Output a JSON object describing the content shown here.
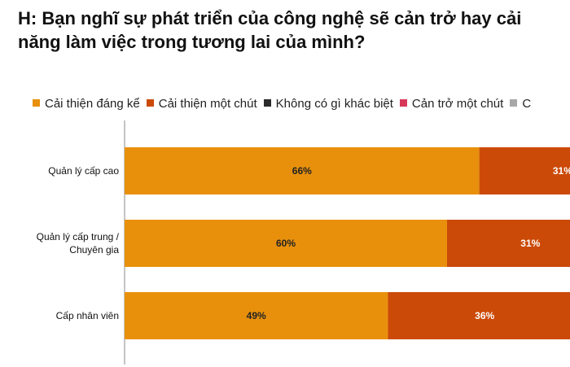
{
  "title_lines": [
    "H: Bạn nghĩ sự phát triển của công nghệ sẽ cản trở hay cải",
    "năng làm việc trong tương lai của mình?"
  ],
  "chart_data": {
    "type": "bar",
    "orientation": "horizontal",
    "stacked": true,
    "categories": [
      [
        "Quản lý cấp cao"
      ],
      [
        "Quản lý cấp trung /",
        "Chuyên gia"
      ],
      [
        "Cấp nhân viên"
      ]
    ],
    "series": [
      {
        "name": "Cải thiện đáng kể",
        "color": "#E8900C",
        "values": [
          66,
          60,
          49
        ],
        "label_color": "#222222"
      },
      {
        "name": "Cải thiện một chút",
        "color": "#CC4A07",
        "values": [
          31,
          31,
          36
        ],
        "label_color": "#ffffff"
      },
      {
        "name": "Không có gì khác biệt",
        "color": "#2b2b2b",
        "values": [
          null,
          null,
          null
        ],
        "label_color": "#ffffff"
      },
      {
        "name": "Cản trở một chút",
        "color": "#D7385A",
        "values": [
          null,
          null,
          null
        ],
        "label_color": "#ffffff"
      },
      {
        "name": "C",
        "color": "#A7A7A7",
        "values": [
          null,
          null,
          null
        ],
        "label_color": "#ffffff"
      }
    ],
    "value_suffix": "%",
    "xlim": [
      0,
      100
    ],
    "grid": false,
    "legend": "top"
  }
}
